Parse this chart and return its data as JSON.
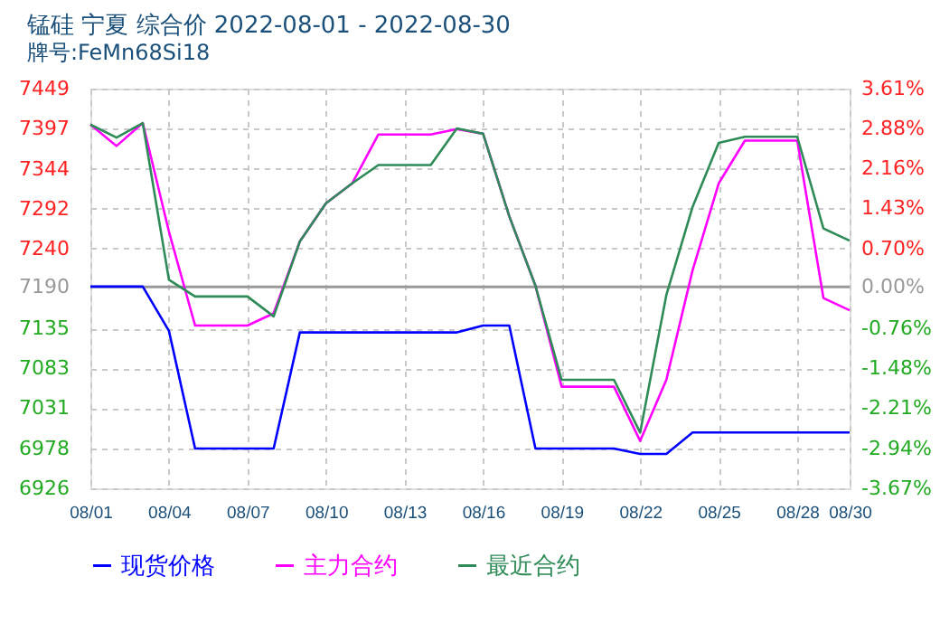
{
  "chart_data": {
    "type": "line",
    "title": "锰硅  宁夏  综合价  2022-08-01 - 2022-08-30",
    "subtitle": "牌号:FeMn68Si18",
    "x": [
      "2022-08-01",
      "2022-08-02",
      "2022-08-03",
      "2022-08-04",
      "2022-08-05",
      "2022-08-06",
      "2022-08-07",
      "2022-08-08",
      "2022-08-09",
      "2022-08-10",
      "2022-08-11",
      "2022-08-12",
      "2022-08-13",
      "2022-08-14",
      "2022-08-15",
      "2022-08-16",
      "2022-08-17",
      "2022-08-18",
      "2022-08-19",
      "2022-08-20",
      "2022-08-21",
      "2022-08-22",
      "2022-08-23",
      "2022-08-24",
      "2022-08-25",
      "2022-08-26",
      "2022-08-27",
      "2022-08-28",
      "2022-08-29",
      "2022-08-30"
    ],
    "series": [
      {
        "name": "现货价格",
        "color": "#0000ff",
        "values": [
          7190,
          7190,
          7190,
          7132,
          6978,
          6978,
          6978,
          6978,
          7130,
          7130,
          7130,
          7130,
          7130,
          7130,
          7130,
          7139,
          7139,
          6978,
          6978,
          6978,
          6978,
          6971,
          6971,
          6999,
          6999,
          6999,
          6999,
          6999,
          6999,
          6999
        ]
      },
      {
        "name": "主力合约",
        "color": "#ff00ff",
        "values": [
          7402,
          7374,
          7404,
          7262,
          7139,
          7139,
          7139,
          7155,
          7249,
          7299,
          7325,
          7389,
          7389,
          7389,
          7396,
          7390,
          7282,
          7191,
          7059,
          7059,
          7059,
          6988,
          7068,
          7211,
          7325,
          7381,
          7381,
          7381,
          7175,
          7159
        ]
      },
      {
        "name": "最近合约",
        "color": "#2e8b57",
        "values": [
          7402,
          7385,
          7404,
          7199,
          7177,
          7177,
          7177,
          7151,
          7249,
          7299,
          7325,
          7349,
          7349,
          7349,
          7397,
          7390,
          7282,
          7191,
          7068,
          7068,
          7068,
          6999,
          7179,
          7294,
          7378,
          7386,
          7386,
          7386,
          7266,
          7250
        ]
      }
    ],
    "xlim": [
      "2022-08-01",
      "2022-08-30"
    ],
    "xticks": [
      {
        "value": "2022-08-01",
        "label": "08/01"
      },
      {
        "value": "2022-08-04",
        "label": "08/04"
      },
      {
        "value": "2022-08-07",
        "label": "08/07"
      },
      {
        "value": "2022-08-10",
        "label": "08/10"
      },
      {
        "value": "2022-08-13",
        "label": "08/13"
      },
      {
        "value": "2022-08-16",
        "label": "08/16"
      },
      {
        "value": "2022-08-19",
        "label": "08/19"
      },
      {
        "value": "2022-08-22",
        "label": "08/22"
      },
      {
        "value": "2022-08-25",
        "label": "08/25"
      },
      {
        "value": "2022-08-28",
        "label": "08/28"
      },
      {
        "value": "2022-08-30",
        "label": "08/30"
      }
    ],
    "ylim": [
      6926,
      7449
    ],
    "yticks": [
      6926,
      6978,
      7031,
      7083,
      7135,
      7190,
      7240,
      7292,
      7344,
      7397,
      7449
    ],
    "y2lim": [
      -3.67,
      3.61
    ],
    "y2ticks": [
      {
        "value": -3.67,
        "label": "-3.67%"
      },
      {
        "value": -2.94,
        "label": "-2.94%"
      },
      {
        "value": -2.21,
        "label": "-2.21%"
      },
      {
        "value": -1.48,
        "label": "-1.48%"
      },
      {
        "value": -0.76,
        "label": "-0.76%"
      },
      {
        "value": 0,
        "label": "0.00%"
      },
      {
        "value": 0.7,
        "label": "0.70%"
      },
      {
        "value": 1.43,
        "label": "1.43%"
      },
      {
        "value": 2.16,
        "label": "2.16%"
      },
      {
        "value": 2.88,
        "label": "2.88%"
      },
      {
        "value": 3.61,
        "label": "3.61%"
      }
    ],
    "ref_lines": [
      {
        "axis": "y2",
        "value": 0,
        "color": "#999999"
      }
    ],
    "grid": true,
    "legend": "bottom",
    "line_style": "solid"
  }
}
